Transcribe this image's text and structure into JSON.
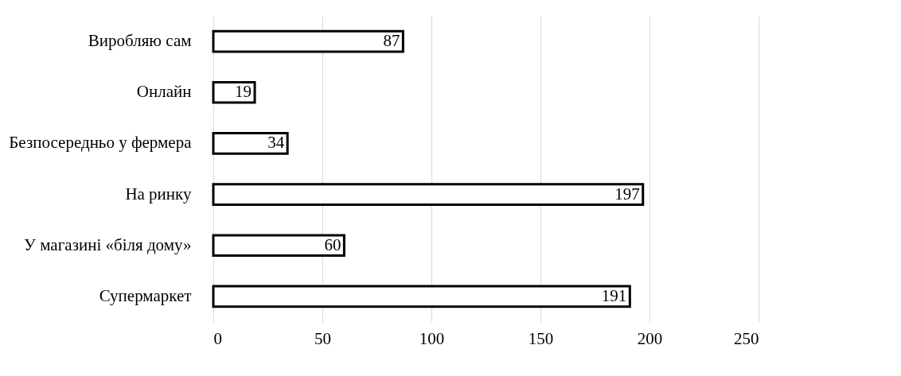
{
  "chart_data": {
    "type": "bar",
    "orientation": "horizontal",
    "categories": [
      "Виробляю сам",
      "Онлайн",
      "Безпосередньо у фермера",
      "На ринку",
      "У магазині «біля дому»",
      "Супермаркет"
    ],
    "values": [
      87,
      19,
      34,
      197,
      60,
      191
    ],
    "color": "#ffffff",
    "xlim": [
      0,
      250
    ],
    "xticks": [
      0,
      50,
      100,
      150,
      200,
      250
    ],
    "grid": "x",
    "data_labels": true
  }
}
